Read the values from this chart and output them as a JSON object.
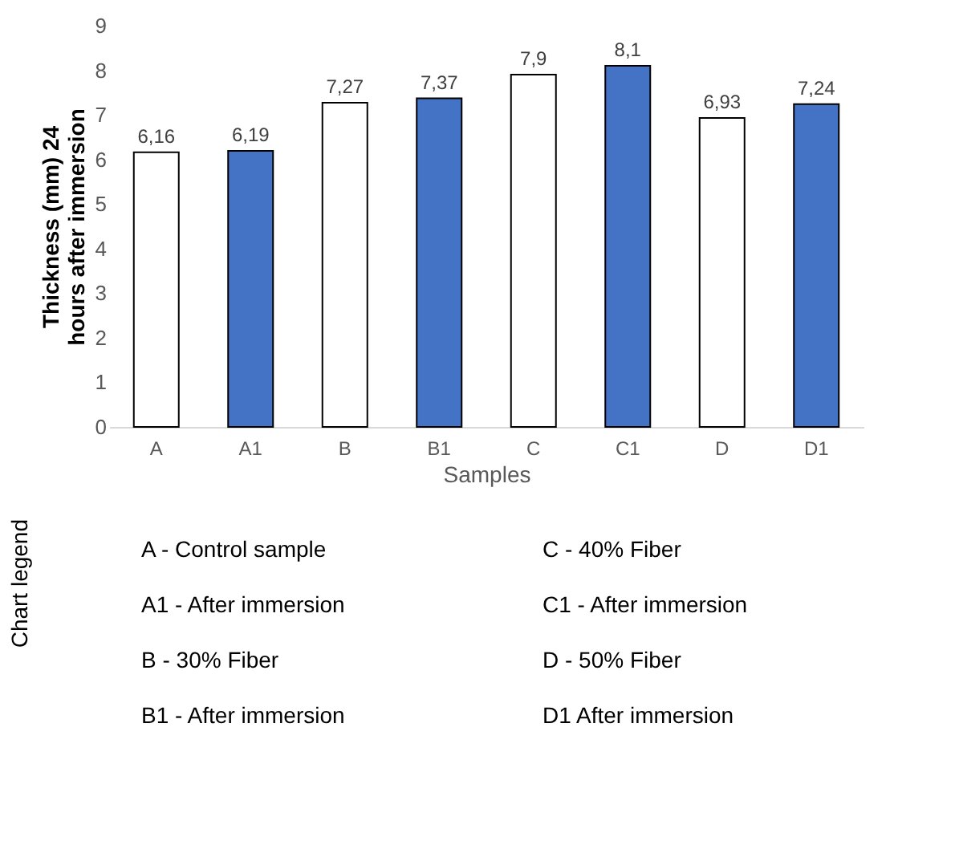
{
  "chart_data": {
    "type": "bar",
    "categories": [
      "A",
      "A1",
      "B",
      "B1",
      "C",
      "C1",
      "D",
      "D1"
    ],
    "values": [
      6.16,
      6.19,
      7.27,
      7.37,
      7.9,
      8.1,
      6.93,
      7.24
    ],
    "value_labels": [
      "6,16",
      "6,19",
      "7,27",
      "7,37",
      "7,9",
      "8,1",
      "6,93",
      "7,24"
    ],
    "colors": [
      "#ffffff",
      "#4472c4",
      "#ffffff",
      "#4472c4",
      "#ffffff",
      "#4472c4",
      "#ffffff",
      "#4472c4"
    ],
    "ylabel": "Thickness (mm) 24 hours after immersion",
    "xlabel": "Samples",
    "ylim": [
      0,
      9
    ],
    "yticks": [
      0,
      1,
      2,
      3,
      4,
      5,
      6,
      7,
      8,
      9
    ],
    "grid": false,
    "annotations": [
      "Chart legend",
      "A - Control sample",
      "C - 40% Fiber",
      "A1 - After immersion",
      "C1 - After immersion",
      "B  -  30% Fiber",
      "D - 50% Fiber",
      "B1 - After immersion",
      "D1 After immersion"
    ]
  }
}
